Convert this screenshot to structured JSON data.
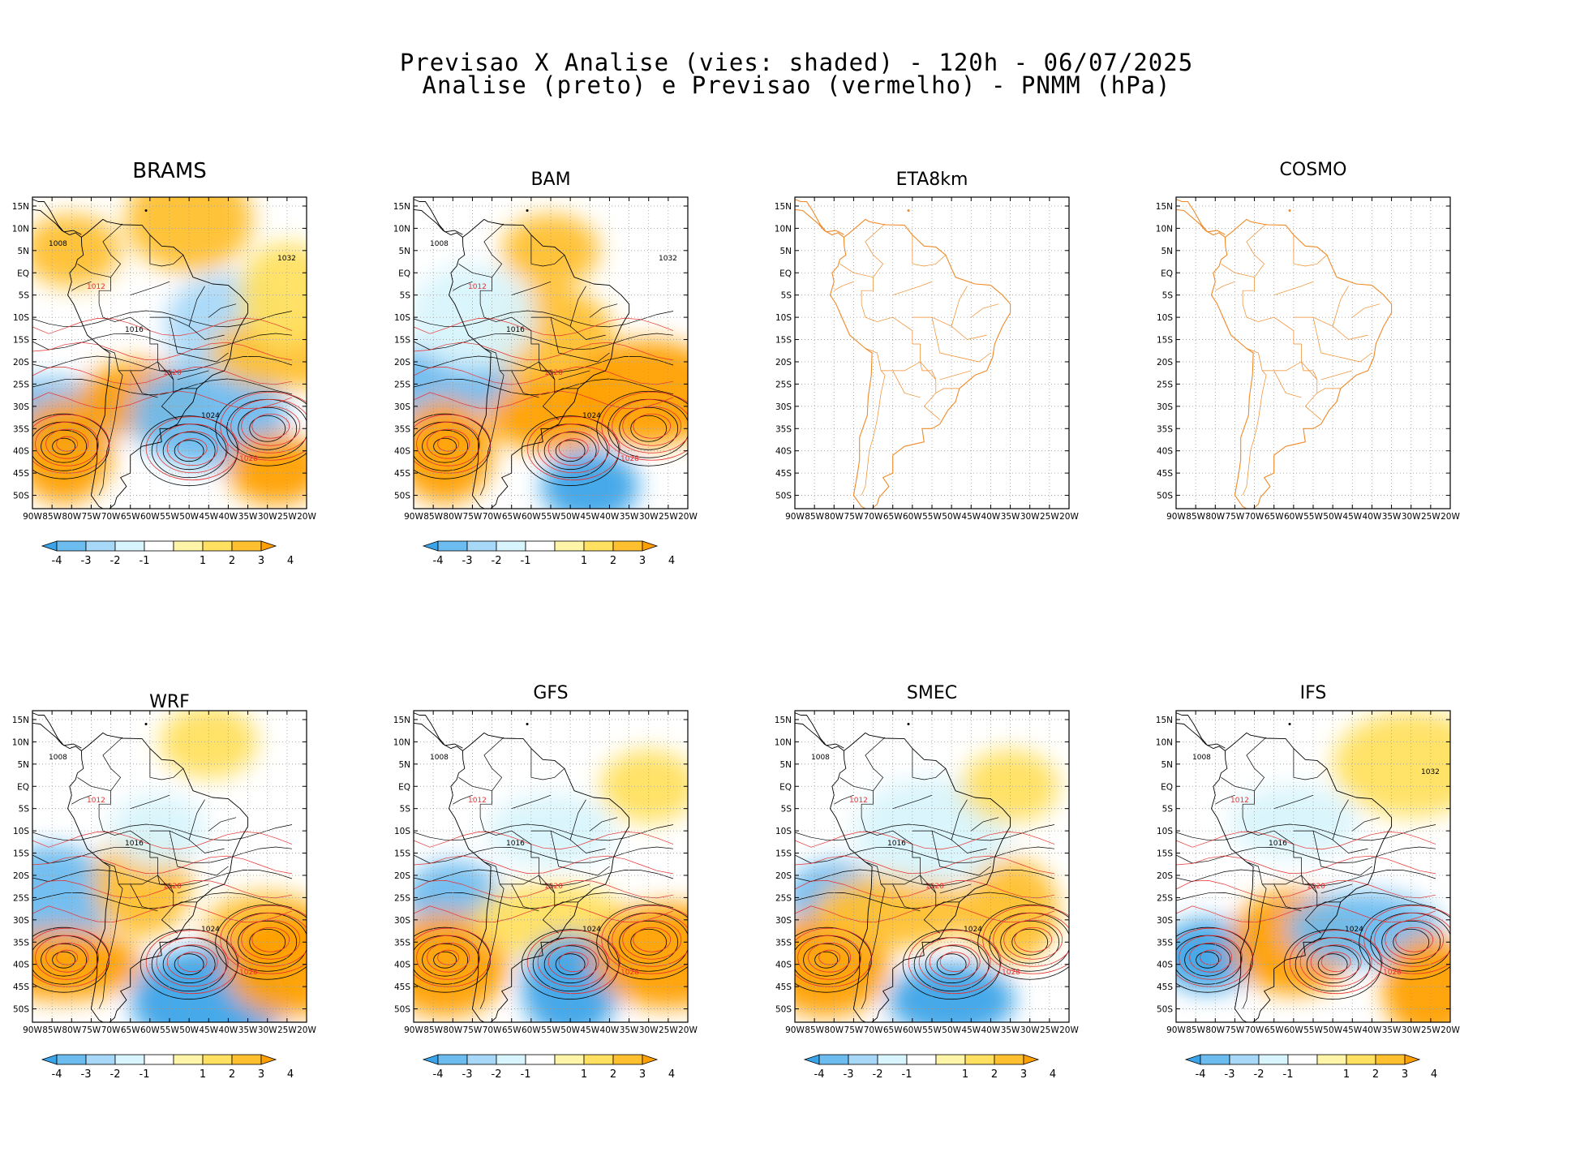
{
  "header": {
    "line1": "Previsao X Analise (vies: shaded) - 120h - 06/07/2025",
    "line2": "Analise (preto) e Previsao (vermelho) - PNMM (hPa)"
  },
  "axes": {
    "lat_labels": [
      "15N",
      "10N",
      "5N",
      "EQ",
      "5S",
      "10S",
      "15S",
      "20S",
      "25S",
      "30S",
      "35S",
      "40S",
      "45S",
      "50S"
    ],
    "lon_labels": [
      "90W",
      "85W",
      "80W",
      "75W",
      "70W",
      "65W",
      "60W",
      "55W",
      "50W",
      "45W",
      "40W",
      "35W",
      "30W",
      "25W",
      "20W"
    ]
  },
  "colorbar": {
    "labels": [
      "-4",
      "-3",
      "-2",
      "-1",
      "1",
      "2",
      "3",
      "4"
    ],
    "colors": [
      "#3ba4e8",
      "#6cbcf0",
      "#a8d8f8",
      "#d8f4fc",
      "#ffffff",
      "#fff5a8",
      "#ffe060",
      "#ffc030",
      "#ffa000"
    ]
  },
  "colors": {
    "analysis": "#000000",
    "forecast": "#e83030",
    "coastline_plain": "#f08a28"
  },
  "panels": [
    {
      "id": "brams",
      "title": "BRAMS",
      "shaded": true,
      "bias_regions": [
        {
          "lon": -80,
          "lat": 5,
          "value": 3
        },
        {
          "lon": -50,
          "lat": 12,
          "value": 3
        },
        {
          "lon": -85,
          "lat": -32,
          "value": -3
        },
        {
          "lon": -82,
          "lat": -40,
          "value": 4
        },
        {
          "lon": -62,
          "lat": -28,
          "value": 4
        },
        {
          "lon": -45,
          "lat": -32,
          "value": -3
        },
        {
          "lon": -28,
          "lat": -44,
          "value": 4
        },
        {
          "lon": -40,
          "lat": -12,
          "value": -2
        },
        {
          "lon": -25,
          "lat": -18,
          "value": 3
        },
        {
          "lon": -25,
          "lat": -5,
          "value": 2
        }
      ],
      "isobars": [
        "1008",
        "1012",
        "1016",
        "1020",
        "1024",
        "1028",
        "1032"
      ]
    },
    {
      "id": "bam",
      "title": "BAM",
      "shaded": true,
      "bias_regions": [
        {
          "lon": -55,
          "lat": 5,
          "value": 3
        },
        {
          "lon": -55,
          "lat": -15,
          "value": 3
        },
        {
          "lon": -85,
          "lat": -25,
          "value": -3
        },
        {
          "lon": -82,
          "lat": -40,
          "value": 4
        },
        {
          "lon": -55,
          "lat": -32,
          "value": 4
        },
        {
          "lon": -30,
          "lat": -27,
          "value": 4
        },
        {
          "lon": -45,
          "lat": -48,
          "value": -4
        },
        {
          "lon": -75,
          "lat": -10,
          "value": -1
        }
      ],
      "isobars": [
        "1008",
        "1012",
        "1016",
        "1020",
        "1024",
        "1028",
        "1032"
      ]
    },
    {
      "id": "eta8km",
      "title": "ETA8km",
      "shaded": false,
      "bias_regions": [],
      "isobars": []
    },
    {
      "id": "cosmo",
      "title": "COSMO",
      "shaded": false,
      "bias_regions": [],
      "isobars": []
    },
    {
      "id": "wrf",
      "title": "WRF",
      "shaded": true,
      "bias_regions": [
        {
          "lon": -45,
          "lat": 10,
          "value": 2
        },
        {
          "lon": -85,
          "lat": -25,
          "value": -3
        },
        {
          "lon": -82,
          "lat": -40,
          "value": 4
        },
        {
          "lon": -62,
          "lat": -22,
          "value": 3
        },
        {
          "lon": -30,
          "lat": -32,
          "value": 3
        },
        {
          "lon": -45,
          "lat": -48,
          "value": -4
        },
        {
          "lon": -58,
          "lat": -10,
          "value": -1
        },
        {
          "lon": -25,
          "lat": -40,
          "value": 4
        }
      ],
      "isobars": [
        "1008",
        "1012",
        "1016",
        "1020",
        "1024",
        "1028"
      ]
    },
    {
      "id": "gfs",
      "title": "GFS",
      "shaded": true,
      "bias_regions": [
        {
          "lon": -80,
          "lat": -25,
          "value": -3
        },
        {
          "lon": -82,
          "lat": -40,
          "value": 4
        },
        {
          "lon": -55,
          "lat": -30,
          "value": 2
        },
        {
          "lon": -50,
          "lat": -45,
          "value": -4
        },
        {
          "lon": -55,
          "lat": -10,
          "value": -1
        },
        {
          "lon": -25,
          "lat": -38,
          "value": 4
        },
        {
          "lon": -30,
          "lat": 0,
          "value": 2
        }
      ],
      "isobars": [
        "1008",
        "1012",
        "1016",
        "1020",
        "1024",
        "1028"
      ]
    },
    {
      "id": "smec",
      "title": "SMEC",
      "shaded": true,
      "bias_regions": [
        {
          "lon": -80,
          "lat": -25,
          "value": -3
        },
        {
          "lon": -82,
          "lat": -40,
          "value": 4
        },
        {
          "lon": -65,
          "lat": -28,
          "value": 3
        },
        {
          "lon": -35,
          "lat": -28,
          "value": 3
        },
        {
          "lon": -50,
          "lat": -48,
          "value": -4
        },
        {
          "lon": -55,
          "lat": -10,
          "value": -1
        },
        {
          "lon": -35,
          "lat": 0,
          "value": 2
        }
      ],
      "isobars": [
        "1008",
        "1012",
        "1016",
        "1020",
        "1024",
        "1028"
      ]
    },
    {
      "id": "ifs",
      "title": "IFS",
      "shaded": true,
      "bias_regions": [
        {
          "lon": -82,
          "lat": -38,
          "value": -4
        },
        {
          "lon": -60,
          "lat": -35,
          "value": 4
        },
        {
          "lon": -42,
          "lat": -32,
          "value": -3
        },
        {
          "lon": -25,
          "lat": -45,
          "value": 4
        },
        {
          "lon": -60,
          "lat": -8,
          "value": -1
        },
        {
          "lon": -30,
          "lat": 5,
          "value": 2
        }
      ],
      "isobars": [
        "1008",
        "1012",
        "1016",
        "1020",
        "1024",
        "1028",
        "1032"
      ]
    }
  ]
}
